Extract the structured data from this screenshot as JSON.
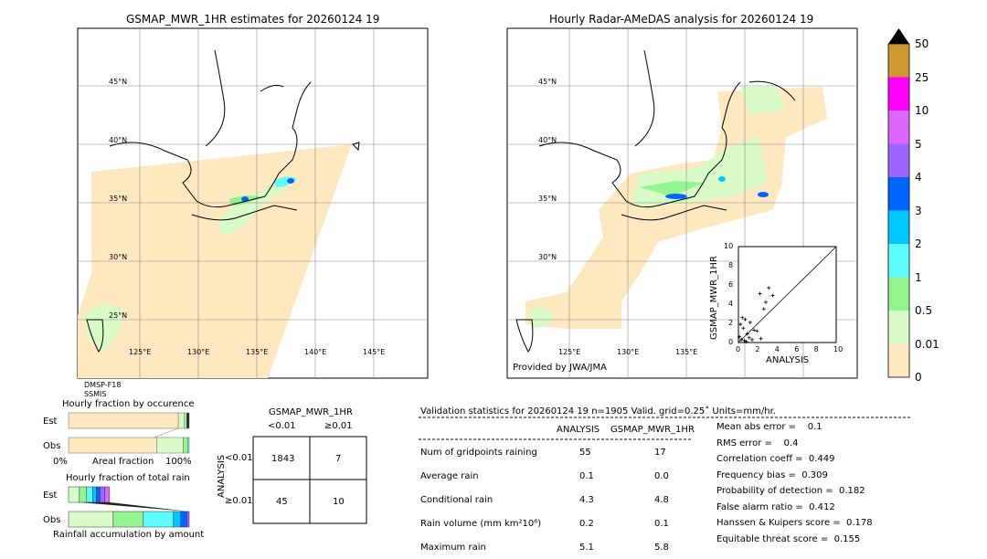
{
  "colors": {
    "0": "#fee8c0",
    "0.01": "#d8fbc8",
    "0.5": "#92f590",
    "1": "#5efcfc",
    "2": "#00c8ff",
    "3": "#0064ff",
    "4": "#9a66ff",
    "5": "#dd66ff",
    "10": "#ff00ff",
    "25": "#cc9933",
    "over": "#000000"
  },
  "left_map": {
    "title": "GSMAP_MWR_1HR estimates for 20260124 19",
    "lat_labels": [
      "45°N",
      "40°N",
      "35°N",
      "30°N",
      "25°N"
    ],
    "lon_labels": [
      "125°E",
      "130°E",
      "135°E",
      "140°E",
      "145°E"
    ],
    "sensor": [
      "DMSP-F18",
      "SSMIS"
    ]
  },
  "right_map": {
    "title": "Hourly Radar-AMeDAS analysis for 20260124 19",
    "lat_labels": [
      "45°N",
      "40°N",
      "35°N",
      "30°N"
    ],
    "lon_labels": [
      "125°E",
      "130°E",
      "135°E"
    ],
    "credit": "Provided by JWA/JMA"
  },
  "chart_data": [
    {
      "type": "scatter",
      "xlabel": "ANALYSIS",
      "ylabel": "GSMAP_MWR_1HR",
      "xlim": [
        0,
        10
      ],
      "ylim": [
        0,
        10
      ],
      "ticks": [
        "0",
        "2",
        "4",
        "6",
        "8",
        "10"
      ],
      "x": [
        2.2,
        3.1,
        2.8,
        3.5,
        2.6,
        1.2,
        1.6,
        0.4,
        0.7,
        1.9,
        2.3,
        0.2,
        0.5,
        0.9,
        1.1,
        0.3,
        0.6,
        0.1,
        0.8,
        1.4
      ],
      "y": [
        5.1,
        5.7,
        4.2,
        4.9,
        3.5,
        2.1,
        1.3,
        2.6,
        2.4,
        1.2,
        0.4,
        1.9,
        1.5,
        0.9,
        0.5,
        0.3,
        0.2,
        0.6,
        0.1,
        0.3
      ]
    },
    {
      "type": "bar",
      "title": "Hourly fraction by occurence",
      "xlabel": "Areal fraction",
      "xticks": [
        "0%",
        "100%"
      ],
      "categories": [
        "Est",
        "Obs"
      ],
      "series": [
        {
          "values": [
            0.91,
            0.73
          ]
        },
        {
          "values": [
            0.05,
            0.22
          ]
        },
        {
          "values": [
            0.02,
            0.04
          ]
        },
        {
          "values": [
            0.02,
            0.01
          ]
        }
      ]
    },
    {
      "type": "bar",
      "title": "Hourly fraction of total rain",
      "xlabel": "Rainfall accumulation by amount",
      "categories": [
        "Est",
        "Obs"
      ],
      "est": [
        0.09,
        0.06,
        0.05,
        0.03,
        0.03,
        0.04,
        0.04
      ],
      "obs": [
        0.37,
        0.25,
        0.25,
        0.06,
        0.05,
        0.02
      ]
    },
    {
      "type": "table",
      "title": "GSMAP_MWR_1HR",
      "col_headers": [
        "<0.01",
        "≥0.01"
      ],
      "row_label": "ANALYSIS",
      "row_headers": [
        "<0.01",
        "≥0.01"
      ],
      "cells": [
        [
          "1843",
          "7"
        ],
        [
          "45",
          "10"
        ]
      ]
    }
  ],
  "colorbar": {
    "labels": [
      "0",
      "0.01",
      "0.5",
      "1",
      "2",
      "3",
      "4",
      "5",
      "10",
      "25",
      "50"
    ]
  },
  "stats": {
    "header": "Validation statistics for 20260124 19  n=1905 Valid. grid=0.25˚ Units=mm/hr.",
    "col_headers": [
      "ANALYSIS",
      "GSMAP_MWR_1HR"
    ],
    "rows": [
      {
        "label": "Num of gridpoints raining",
        "a": "55",
        "g": "17"
      },
      {
        "label": "Average rain",
        "a": "0.1",
        "g": "0.0"
      },
      {
        "label": "Conditional rain",
        "a": "4.3",
        "g": "4.8"
      },
      {
        "label": "Rain volume (mm km²10⁶)",
        "a": "0.2",
        "g": "0.1"
      },
      {
        "label": "Maximum rain",
        "a": "5.1",
        "g": "5.8"
      }
    ],
    "scores": [
      "Mean abs error =    0.1",
      "RMS error =    0.4",
      "Correlation coeff =  0.449",
      "Frequency bias =  0.309",
      "Probability of detection =  0.182",
      "False alarm ratio =  0.412",
      "Hanssen & Kuipers score =  0.178",
      "Equitable threat score =  0.155"
    ]
  }
}
